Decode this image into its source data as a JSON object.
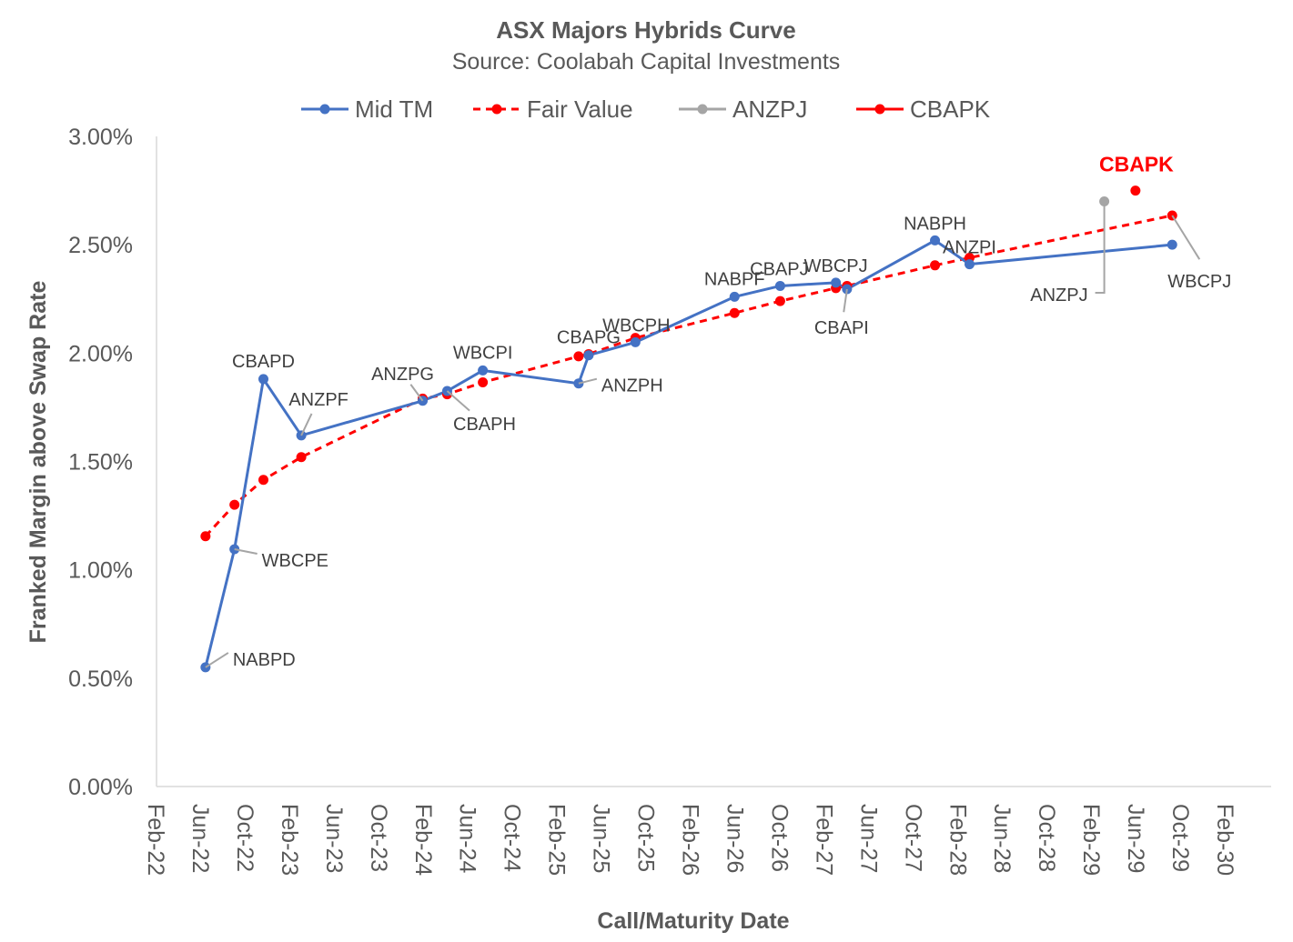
{
  "chart_data": {
    "type": "line",
    "title": "ASX Majors Hybrids Curve",
    "subtitle": "Source: Coolabah Capital Investments",
    "xlabel": "Call/Maturity Date",
    "ylabel": "Franked Margin above Swap Rate",
    "xlim": [
      "2022-02-01",
      "2030-02-01"
    ],
    "ylim": [
      0,
      3.0
    ],
    "y_unit": "%",
    "y_ticks": [
      "0.00%",
      "0.50%",
      "1.00%",
      "1.50%",
      "2.00%",
      "2.50%",
      "3.00%"
    ],
    "x_ticks": [
      "Feb-22",
      "Jun-22",
      "Oct-22",
      "Feb-23",
      "Jun-23",
      "Oct-23",
      "Feb-24",
      "Jun-24",
      "Oct-24",
      "Feb-25",
      "Jun-25",
      "Oct-25",
      "Feb-26",
      "Jun-26",
      "Oct-26",
      "Feb-27",
      "Jun-27",
      "Oct-27",
      "Feb-28",
      "Jun-28",
      "Oct-28",
      "Feb-29",
      "Jun-29",
      "Oct-29",
      "Feb-30"
    ],
    "grid": false,
    "legend_position": "top",
    "labels": [
      "NABPD",
      "WBCPE",
      "CBAPD",
      "ANZPF",
      "ANZPG",
      "CBAPH",
      "WBCPI",
      "ANZPH",
      "CBAPG",
      "WBCPH",
      "NABPF",
      "CBAPJ",
      "WBCPJ",
      "CBAPI",
      "NABPH",
      "ANZPI",
      "WBCPJ"
    ],
    "dates": [
      "2022-06-13",
      "2022-09-01",
      "2022-11-19",
      "2023-03-01",
      "2024-01-28",
      "2024-04-04",
      "2024-07-10",
      "2025-03-28",
      "2025-04-25",
      "2025-09-01",
      "2026-05-28",
      "2026-10-01",
      "2027-03-01",
      "2027-04-01",
      "2027-11-28",
      "2028-03-01",
      "2029-09-07"
    ],
    "series": [
      {
        "name": "Mid TM",
        "color": "#4472C4",
        "style": "solid",
        "values": [
          0.55,
          1.095,
          1.88,
          1.62,
          1.78,
          1.825,
          1.92,
          1.86,
          1.99,
          2.05,
          2.26,
          2.31,
          2.325,
          2.295,
          2.52,
          2.41,
          2.5
        ]
      },
      {
        "name": "Fair Value",
        "color": "#FF0000",
        "style": "dashed",
        "values": [
          1.155,
          1.3,
          1.415,
          1.52,
          1.79,
          1.81,
          1.865,
          1.985,
          1.995,
          2.07,
          2.185,
          2.24,
          2.3,
          2.31,
          2.405,
          2.44,
          2.635
        ]
      },
      {
        "name": "ANZPJ",
        "color": "#A5A5A5",
        "style": "point",
        "points": [
          {
            "date": "2029-03-04",
            "value": 2.7,
            "label": "ANZPJ"
          }
        ]
      },
      {
        "name": "CBAPK",
        "color": "#FF0000",
        "style": "point",
        "points": [
          {
            "date": "2029-05-28",
            "value": 2.75,
            "label": "CBAPK"
          }
        ]
      }
    ]
  }
}
